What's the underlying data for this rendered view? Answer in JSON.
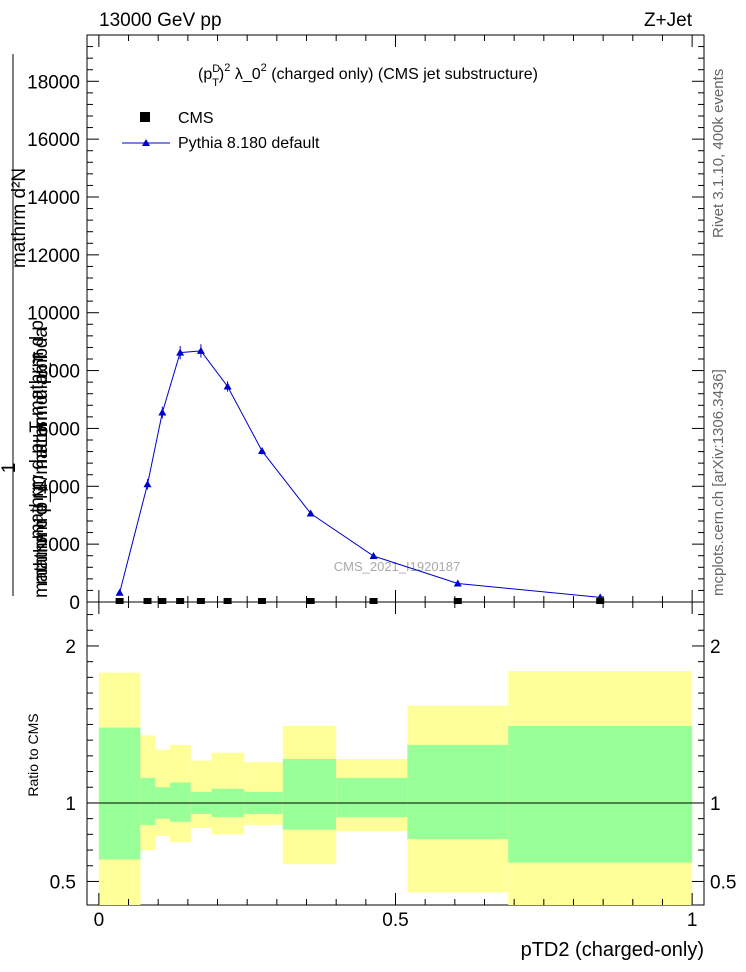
{
  "header": {
    "left_label": "13000 GeV pp",
    "right_label": "Z+Jet",
    "side_label_top": "Rivet 3.1.10,  400k events",
    "side_label_bottom": "mcplots.cern.ch [arXiv:1306.3436]"
  },
  "colors": {
    "mc_line": "#0000cc",
    "data_marker": "#000000",
    "band_outer": "#ffff99",
    "band_inner": "#99ff99"
  },
  "chart_data": [
    {
      "type": "line",
      "title_parts": {
        "base": "(p",
        "sup1": "D",
        "sub1": "T",
        "close": ")",
        "sup2": "2",
        "rest": " λ_0",
        "sup3": "2",
        "tail": " (charged only) (CMS jet substructure)"
      },
      "ylabel_numerator": "mathrm d²N",
      "ylabel_numerator_sub": "mathrm d p_T mathrm d lambda",
      "ylabel_one": "1",
      "ylabel_denominator": "mathrm d N / mathrm d p_T",
      "ylabel_denominator_sub": "mathrm d p_T mathrm d p",
      "watermark": "CMS_2021_I1920187",
      "xlim": [
        -0.02,
        1.02
      ],
      "ylim": [
        0,
        19600
      ],
      "y_tick_labels": [
        "0",
        "2000",
        "4000",
        "6000",
        "8000",
        "10000",
        "12000",
        "14000",
        "16000",
        "18000"
      ],
      "y_tick_values": [
        0,
        2000,
        4000,
        6000,
        8000,
        10000,
        12000,
        14000,
        16000,
        18000
      ],
      "legend": {
        "data_label": "CMS",
        "mc_label": "Pythia 8.180 default"
      },
      "series": [
        {
          "name": "Pythia 8.180 default",
          "x": [
            0.035,
            0.082,
            0.107,
            0.137,
            0.172,
            0.217,
            0.275,
            0.357,
            0.463,
            0.605,
            0.845
          ],
          "values": [
            320,
            4070,
            6550,
            8620,
            8680,
            7450,
            5220,
            3060,
            1590,
            640,
            160
          ],
          "errors": [
            60,
            180,
            200,
            230,
            230,
            180,
            120,
            80,
            50,
            30,
            20
          ]
        },
        {
          "name": "CMS",
          "x": [
            0.035,
            0.082,
            0.107,
            0.137,
            0.172,
            0.217,
            0.275,
            0.357,
            0.463,
            0.605,
            0.845
          ],
          "values": [
            0,
            0,
            0,
            0,
            0,
            0,
            0,
            0,
            0,
            0,
            0
          ]
        }
      ]
    },
    {
      "type": "area",
      "ylabel": "Ratio to CMS",
      "xlabel": "pTD2 (charged-only)",
      "xlim": [
        -0.02,
        1.02
      ],
      "ylim": [
        0.35,
        2.28
      ],
      "x_tick_labels": [
        "0",
        "0.5",
        "1"
      ],
      "x_tick_values": [
        0,
        0.5,
        1
      ],
      "y_tick_labels": [
        "0.5",
        "1",
        "2"
      ],
      "y_tick_values": [
        0.5,
        1,
        2
      ],
      "bin_edges": [
        0.0,
        0.07,
        0.095,
        0.12,
        0.155,
        0.19,
        0.245,
        0.31,
        0.4,
        0.52,
        0.69,
        1.0
      ],
      "outer_band": {
        "low": [
          0.35,
          0.7,
          0.79,
          0.75,
          0.84,
          0.8,
          0.86,
          0.61,
          0.82,
          0.43,
          0.35
        ],
        "high": [
          1.83,
          1.43,
          1.34,
          1.37,
          1.27,
          1.32,
          1.26,
          1.49,
          1.28,
          1.62,
          1.84
        ]
      },
      "inner_band": {
        "low": [
          0.64,
          0.86,
          0.9,
          0.88,
          0.93,
          0.91,
          0.93,
          0.83,
          0.91,
          0.77,
          0.62
        ],
        "high": [
          1.48,
          1.16,
          1.1,
          1.13,
          1.07,
          1.09,
          1.07,
          1.28,
          1.16,
          1.37,
          1.49
        ]
      },
      "reference": 1.0
    }
  ]
}
